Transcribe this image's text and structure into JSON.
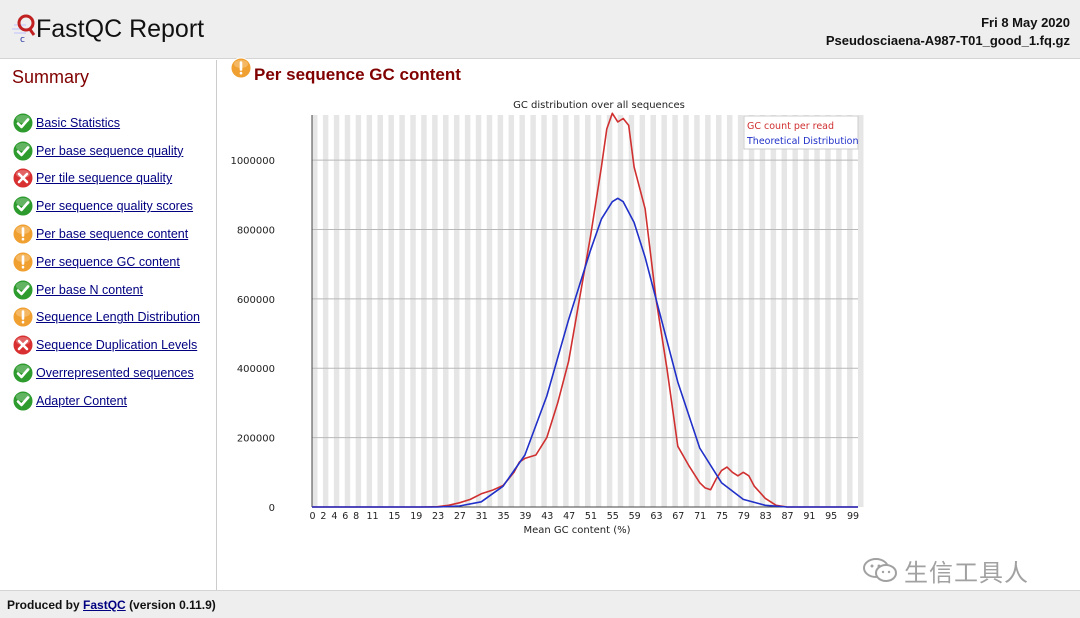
{
  "header": {
    "title": "FastQC Report",
    "date": "Fri 8 May 2020",
    "filename": "Pseudosciaena-A987-T01_good_1.fq.gz"
  },
  "sidebar": {
    "title": "Summary",
    "items": [
      {
        "label": "Basic Statistics",
        "status": "pass"
      },
      {
        "label": "Per base sequence quality",
        "status": "pass"
      },
      {
        "label": "Per tile sequence quality",
        "status": "fail"
      },
      {
        "label": "Per sequence quality scores",
        "status": "pass"
      },
      {
        "label": "Per base sequence content",
        "status": "warn"
      },
      {
        "label": "Per sequence GC content",
        "status": "warn"
      },
      {
        "label": "Per base N content",
        "status": "pass"
      },
      {
        "label": "Sequence Length Distribution",
        "status": "warn"
      },
      {
        "label": "Sequence Duplication Levels",
        "status": "fail"
      },
      {
        "label": "Overrepresented sequences",
        "status": "pass"
      },
      {
        "label": "Adapter Content",
        "status": "pass"
      }
    ]
  },
  "main": {
    "section_title": "Per sequence GC content",
    "section_status": "warn"
  },
  "footer": {
    "prefix": "Produced by",
    "link": "FastQC",
    "version": "(version 0.11.9)"
  },
  "watermark": {
    "text": "生信工具人"
  },
  "colors": {
    "pass": "#2e9b2e",
    "warn": "#f0a030",
    "fail": "#d83030",
    "gc_series": "#d03030",
    "theoretical_series": "#2030c8",
    "title_red": "#800000",
    "link_blue": "#000080"
  },
  "chart_data": {
    "type": "line",
    "title": "GC distribution over all sequences",
    "xlabel": "Mean GC content (%)",
    "ylabel": "",
    "xlim": [
      0,
      100
    ],
    "ylim": [
      0,
      1130000
    ],
    "x_ticks": [
      0,
      2,
      4,
      6,
      8,
      11,
      15,
      19,
      23,
      27,
      31,
      35,
      39,
      43,
      47,
      51,
      55,
      59,
      63,
      67,
      71,
      75,
      79,
      83,
      87,
      91,
      95,
      99
    ],
    "y_ticks": [
      0,
      200000,
      400000,
      600000,
      800000,
      1000000
    ],
    "grid": true,
    "legend_position": "top-right",
    "series": [
      {
        "name": "GC count per read",
        "color": "#d03030",
        "points": [
          [
            0,
            0
          ],
          [
            20,
            0
          ],
          [
            23,
            1000
          ],
          [
            25,
            5000
          ],
          [
            27,
            12000
          ],
          [
            29,
            22000
          ],
          [
            31,
            38000
          ],
          [
            33,
            48000
          ],
          [
            35,
            62000
          ],
          [
            37,
            100000
          ],
          [
            38,
            130000
          ],
          [
            39,
            140000
          ],
          [
            41,
            150000
          ],
          [
            43,
            200000
          ],
          [
            45,
            300000
          ],
          [
            47,
            420000
          ],
          [
            49,
            600000
          ],
          [
            51,
            780000
          ],
          [
            53,
            980000
          ],
          [
            54,
            1090000
          ],
          [
            55,
            1135000
          ],
          [
            56,
            1110000
          ],
          [
            57,
            1120000
          ],
          [
            58,
            1100000
          ],
          [
            59,
            980000
          ],
          [
            61,
            860000
          ],
          [
            63,
            600000
          ],
          [
            65,
            400000
          ],
          [
            67,
            175000
          ],
          [
            69,
            120000
          ],
          [
            71,
            70000
          ],
          [
            72,
            55000
          ],
          [
            73,
            50000
          ],
          [
            74,
            80000
          ],
          [
            75,
            105000
          ],
          [
            76,
            115000
          ],
          [
            77,
            100000
          ],
          [
            78,
            90000
          ],
          [
            79,
            100000
          ],
          [
            80,
            90000
          ],
          [
            81,
            60000
          ],
          [
            83,
            25000
          ],
          [
            85,
            5000
          ],
          [
            87,
            0
          ],
          [
            100,
            0
          ]
        ]
      },
      {
        "name": "Theoretical Distribution",
        "color": "#2030c8",
        "points": [
          [
            0,
            0
          ],
          [
            23,
            0
          ],
          [
            27,
            3000
          ],
          [
            31,
            15000
          ],
          [
            35,
            60000
          ],
          [
            39,
            150000
          ],
          [
            43,
            320000
          ],
          [
            47,
            540000
          ],
          [
            51,
            740000
          ],
          [
            53,
            830000
          ],
          [
            55,
            880000
          ],
          [
            56,
            890000
          ],
          [
            57,
            880000
          ],
          [
            59,
            820000
          ],
          [
            61,
            720000
          ],
          [
            63,
            600000
          ],
          [
            67,
            360000
          ],
          [
            71,
            170000
          ],
          [
            75,
            70000
          ],
          [
            79,
            22000
          ],
          [
            83,
            5000
          ],
          [
            87,
            0
          ],
          [
            100,
            0
          ]
        ]
      }
    ]
  }
}
